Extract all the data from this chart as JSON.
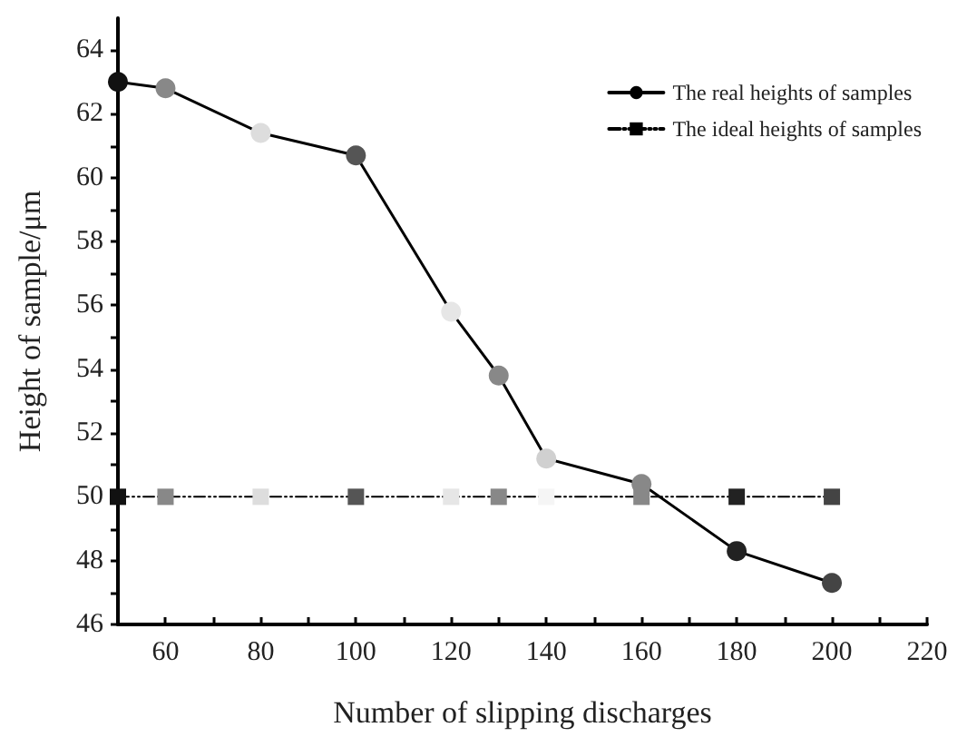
{
  "chart_data": {
    "type": "line",
    "xlabel": "Number of slipping discharges",
    "ylabel": "Height of sample/μm",
    "x": [
      50,
      60,
      80,
      100,
      120,
      130,
      140,
      160,
      180,
      200
    ],
    "series": [
      {
        "name": "The real heights of samples",
        "color": "#000000",
        "marker": "circle",
        "line_style": "solid",
        "values": [
          63.0,
          62.8,
          61.4,
          60.7,
          55.8,
          53.8,
          51.2,
          50.4,
          48.3,
          47.3
        ],
        "colors": [
          "#111111",
          "#888888",
          "#dddddd",
          "#555555",
          "#e6e6e6",
          "#888888",
          "#d0d0d0",
          "#888888",
          "#222222",
          "#444444"
        ]
      },
      {
        "name": "The ideal heights of samples",
        "color": "#000000",
        "marker": "square",
        "line_style": "dashed",
        "values": [
          50,
          50,
          50,
          50,
          50,
          50,
          50,
          50,
          50,
          50
        ],
        "colors": [
          "#111111",
          "#888888",
          "#dddddd",
          "#555555",
          "#e6e6e6",
          "#888888",
          "#f5f5f5",
          "#888888",
          "#222222",
          "#444444"
        ]
      }
    ],
    "xlim": [
      50,
      220
    ],
    "xticks": [
      {
        "value": 50,
        "label": null
      },
      60,
      {
        "value": 70,
        "label": null
      },
      80,
      {
        "value": 90,
        "label": null
      },
      100,
      {
        "value": 110,
        "label": null
      },
      120,
      {
        "value": 130,
        "label": null
      },
      140,
      {
        "value": 150,
        "label": null
      },
      160,
      {
        "value": 170,
        "label": null
      },
      180,
      {
        "value": 190,
        "label": null
      },
      200,
      {
        "value": 210,
        "label": null
      },
      220
    ],
    "ylim": [
      46,
      65
    ],
    "yticks": [
      46,
      {
        "value": 47,
        "label": null
      },
      48,
      {
        "value": 49,
        "label": null
      },
      50,
      {
        "value": 51,
        "label": null
      },
      52,
      {
        "value": 53,
        "label": null
      },
      54,
      {
        "value": 55,
        "label": null
      },
      56,
      {
        "value": 57,
        "label": null
      },
      58,
      {
        "value": 59,
        "label": null
      },
      60,
      {
        "value": 61,
        "label": null
      },
      62,
      {
        "value": 63,
        "label": null
      },
      64
    ],
    "grid": false,
    "legend": "top right"
  }
}
